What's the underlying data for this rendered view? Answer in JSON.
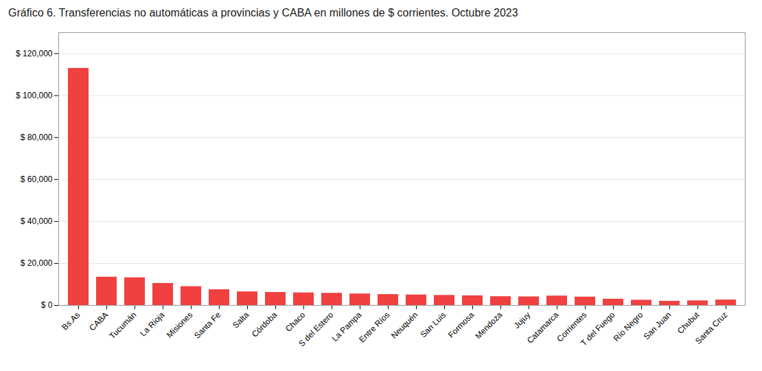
{
  "chart_data": {
    "type": "bar",
    "title": "Gráfico 6. Transferencias no automáticas a provincias y CABA en millones de $ corrientes. Octubre 2023",
    "categories": [
      "Bs.As",
      "CABA",
      "Tucumán",
      "La Rioja",
      "Misiones",
      "Santa Fe",
      "Salta",
      "Córdoba",
      "Chaco",
      "S del Estero",
      "La Pampa",
      "Entre Ríos",
      "Neuquén",
      "San Luis",
      "Formosa",
      "Mendoza",
      "Jujuy",
      "Catamarca",
      "Corrientes",
      "T del Fuego",
      "Río Negro",
      "San Juan",
      "Chubut",
      "Santa Cruz"
    ],
    "values": [
      113000,
      13500,
      13200,
      10500,
      9000,
      7500,
      6500,
      6200,
      6000,
      5800,
      5500,
      5200,
      5000,
      4800,
      4600,
      4200,
      4100,
      4500,
      4000,
      3000,
      2500,
      2000,
      2200,
      2600
    ],
    "color": "#f04040",
    "ylim": [
      0,
      130000
    ],
    "yticks": [
      {
        "value": 0,
        "label": "$ 0"
      },
      {
        "value": 20000,
        "label": "$ 20,000"
      },
      {
        "value": 40000,
        "label": "$ 40,000"
      },
      {
        "value": 60000,
        "label": "$ 60,000"
      },
      {
        "value": 80000,
        "label": "$ 80,000"
      },
      {
        "value": 100000,
        "label": "$ 100,000"
      },
      {
        "value": 120000,
        "label": "$ 120,000"
      }
    ],
    "grid": true
  }
}
